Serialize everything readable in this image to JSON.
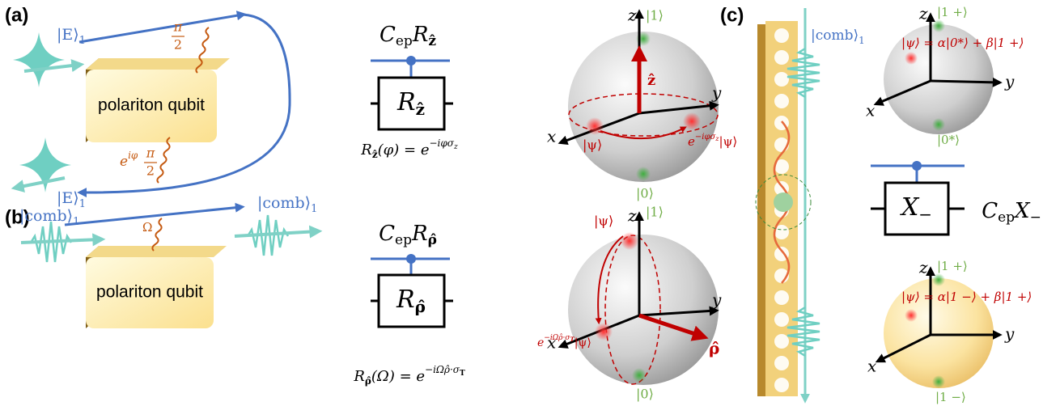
{
  "panel_a": {
    "label": "(a)",
    "ket_in": {
      "ket": "|E⟩",
      "sub": "1"
    },
    "ket_out": {
      "ket": "|E⟩",
      "sub": "1"
    },
    "absorb_phase": {
      "num": "π",
      "den": "2"
    },
    "emit_phase": {
      "base": "e",
      "sup": "iφ",
      "num": "π",
      "den": "2"
    },
    "qubit": "polariton qubit",
    "gate": {
      "title": {
        "c": "C",
        "c_sub": "ep",
        "r": "R",
        "r_sub": "ẑ"
      },
      "box": {
        "r": "R",
        "r_sub": "ẑ"
      },
      "formula": {
        "lhs": "R",
        "lhs_sub": "ẑ",
        "arg": "(φ) = ",
        "base": "e",
        "sup": "−iφσ",
        "sup_sub": "z"
      }
    },
    "sphere": {
      "z": "z",
      "y": "y",
      "x": "x",
      "top": "|1⟩",
      "bottom": "|0⟩",
      "axis": "ẑ",
      "psi": "|ψ⟩",
      "rotated": {
        "base": "e",
        "sup": "−iφσ",
        "sup_sub": "z",
        "ket": "|ψ⟩"
      }
    }
  },
  "panel_b": {
    "label": "(b)",
    "ket_in": {
      "ket": "|comb⟩",
      "sub": "1"
    },
    "ket_out": {
      "ket": "|comb⟩",
      "sub": "1"
    },
    "coupling": "Ω",
    "qubit": "polariton qubit",
    "gate": {
      "title": {
        "c": "C",
        "c_sub": "ep",
        "r": "R",
        "r_sub": "ρ̂"
      },
      "box": {
        "r": "R",
        "r_sub": "ρ̂"
      },
      "formula": {
        "lhs": "R",
        "lhs_sub": "ρ̂",
        "arg": "(Ω) = ",
        "base": "e",
        "sup": "−iΩρ̂·σ",
        "sup_sub": "T"
      }
    },
    "sphere": {
      "z": "z",
      "y": "y",
      "x": "x",
      "top": "|1⟩",
      "bottom": "|0⟩",
      "axis": "ρ̂",
      "psi": "|ψ⟩",
      "rotated": {
        "base": "e",
        "sup": "−iΩρ̂·σ",
        "sup_sub": "T",
        "ket": "|ψ⟩"
      }
    }
  },
  "panel_c": {
    "label": "(c)",
    "ket": {
      "ket": "|comb⟩",
      "sub": "1"
    },
    "sphere_top": {
      "z": "z",
      "y": "y",
      "x": "x",
      "top": "|1 +⟩",
      "bottom": "|0*⟩",
      "state": "|ψ⟩ = α|0*⟩ + β|1 +⟩"
    },
    "gate": {
      "title": {
        "c": "C",
        "c_sub": "ep",
        "r": "X",
        "r_sub": "−"
      },
      "box": {
        "r": "X",
        "r_sub": "−"
      }
    },
    "sphere_bottom": {
      "z": "z",
      "y": "y",
      "x": "x",
      "top": "|1 +⟩",
      "bottom": "|1 −⟩",
      "state": "|ψ⟩ = α|1 −⟩ + β|1 +⟩"
    }
  }
}
